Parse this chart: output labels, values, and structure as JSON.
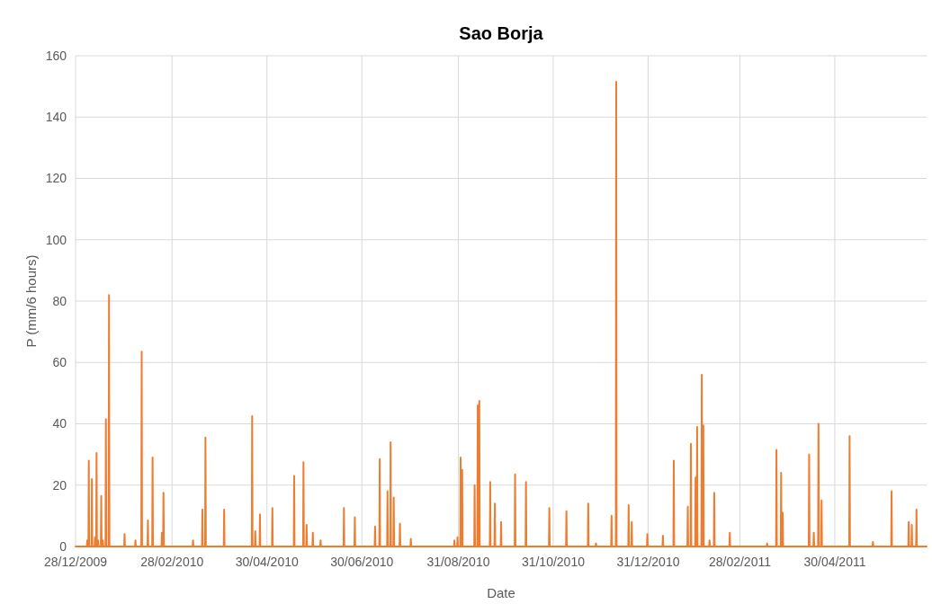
{
  "chart_data": {
    "type": "line",
    "title": "Sao Borja",
    "xlabel": "Date",
    "ylabel": "P (mm/6 hours)",
    "xlim": [
      "2009-12-28",
      "2011-06-28"
    ],
    "xticks": [
      {
        "value": "2009-12-28",
        "label": "28/12/2009"
      },
      {
        "value": "2010-02-28",
        "label": "28/02/2010"
      },
      {
        "value": "2010-04-30",
        "label": "30/04/2010"
      },
      {
        "value": "2010-06-30",
        "label": "30/06/2010"
      },
      {
        "value": "2010-08-31",
        "label": "31/08/2010"
      },
      {
        "value": "2010-10-31",
        "label": "31/10/2010"
      },
      {
        "value": "2010-12-31",
        "label": "31/12/2010"
      },
      {
        "value": "2011-02-28",
        "label": "28/02/2011"
      },
      {
        "value": "2011-04-30",
        "label": "30/04/2011"
      }
    ],
    "ylim": [
      0,
      160
    ],
    "yticks": [
      0,
      20,
      40,
      60,
      80,
      100,
      120,
      140,
      160
    ],
    "grid": true,
    "marker": "none",
    "line_style": "solid",
    "series": [
      {
        "color": "#ed7d31",
        "x": [
          "2009-12-28",
          "2010-01-04T06:00",
          "2010-01-04T12:00",
          "2010-01-04T18:00",
          "2010-01-05T06:00",
          "2010-01-05T12:00",
          "2010-01-05T18:00",
          "2010-01-07T06:00",
          "2010-01-07T12:00",
          "2010-01-07T18:00",
          "2010-01-09T06:00",
          "2010-01-09T12:00",
          "2010-01-09T18:00",
          "2010-01-10T06:00",
          "2010-01-10T12:00",
          "2010-01-10T18:00",
          "2010-01-11T06:00",
          "2010-01-11T12:00",
          "2010-01-11T18:00",
          "2010-01-13T06:00",
          "2010-01-13T12:00",
          "2010-01-13T18:00",
          "2010-01-14T06:00",
          "2010-01-14T12:00",
          "2010-01-14T18:00",
          "2010-01-16T06:00",
          "2010-01-16T12:00",
          "2010-01-16T18:00",
          "2010-01-18T06:00",
          "2010-01-18T12:00",
          "2010-01-18T18:00",
          "2010-01-28T06:00",
          "2010-01-28T12:00",
          "2010-01-28T18:00",
          "2010-02-04T06:00",
          "2010-02-04T12:00",
          "2010-02-04T18:00",
          "2010-02-08T06:00",
          "2010-02-08T12:00",
          "2010-02-08T18:00",
          "2010-02-12T06:00",
          "2010-02-12T12:00",
          "2010-02-12T18:00",
          "2010-02-15T06:00",
          "2010-02-15T12:00",
          "2010-02-15T18:00",
          "2010-02-21T06:00",
          "2010-02-21T12:00",
          "2010-02-21T18:00",
          "2010-02-22T06:00",
          "2010-02-22T12:00",
          "2010-02-22T18:00",
          "2010-03-13T06:00",
          "2010-03-13T12:00",
          "2010-03-13T18:00",
          "2010-03-19T06:00",
          "2010-03-19T12:00",
          "2010-03-19T18:00",
          "2010-03-21T06:00",
          "2010-03-21T12:00",
          "2010-03-21T18:00",
          "2010-04-02T06:00",
          "2010-04-02T12:00",
          "2010-04-02T18:00",
          "2010-04-20T06:00",
          "2010-04-20T12:00",
          "2010-04-20T18:00",
          "2010-04-22T06:00",
          "2010-04-22T12:00",
          "2010-04-22T18:00",
          "2010-04-25T06:00",
          "2010-04-25T12:00",
          "2010-04-25T18:00",
          "2010-05-03T06:00",
          "2010-05-03T12:00",
          "2010-05-03T18:00",
          "2010-05-17T06:00",
          "2010-05-17T12:00",
          "2010-05-17T18:00",
          "2010-05-23T06:00",
          "2010-05-23T12:00",
          "2010-05-23T18:00",
          "2010-05-25T06:00",
          "2010-05-25T12:00",
          "2010-05-25T18:00",
          "2010-05-29T06:00",
          "2010-05-29T12:00",
          "2010-05-29T18:00",
          "2010-06-03T06:00",
          "2010-06-03T12:00",
          "2010-06-03T18:00",
          "2010-06-18T06:00",
          "2010-06-18T12:00",
          "2010-06-18T18:00",
          "2010-06-25T06:00",
          "2010-06-25T12:00",
          "2010-06-25T18:00",
          "2010-07-08T06:00",
          "2010-07-08T12:00",
          "2010-07-08T18:00",
          "2010-07-11T06:00",
          "2010-07-11T12:00",
          "2010-07-11T18:00",
          "2010-07-16T06:00",
          "2010-07-16T12:00",
          "2010-07-16T18:00",
          "2010-07-18T06:00",
          "2010-07-18T12:00",
          "2010-07-18T18:00",
          "2010-07-20T06:00",
          "2010-07-20T12:00",
          "2010-07-20T18:00",
          "2010-07-24T06:00",
          "2010-07-24T12:00",
          "2010-07-24T18:00",
          "2010-07-31T06:00",
          "2010-07-31T12:00",
          "2010-07-31T18:00",
          "2010-08-28T06:00",
          "2010-08-28T12:00",
          "2010-08-28T18:00",
          "2010-08-30T06:00",
          "2010-08-30T12:00",
          "2010-08-30T18:00",
          "2010-09-01T06:00",
          "2010-09-01T12:00",
          "2010-09-01T18:00",
          "2010-09-02T06:00",
          "2010-09-02T12:00",
          "2010-09-02T18:00",
          "2010-09-10T06:00",
          "2010-09-10T12:00",
          "2010-09-10T18:00",
          "2010-09-12T06:00",
          "2010-09-12T12:00",
          "2010-09-12T18:00",
          "2010-09-13T06:00",
          "2010-09-13T12:00",
          "2010-09-13T18:00",
          "2010-09-20T06:00",
          "2010-09-20T12:00",
          "2010-09-20T18:00",
          "2010-09-23T06:00",
          "2010-09-23T12:00",
          "2010-09-23T18:00",
          "2010-09-27T06:00",
          "2010-09-27T12:00",
          "2010-09-27T18:00",
          "2010-10-06T06:00",
          "2010-10-06T12:00",
          "2010-10-06T18:00",
          "2010-10-13T06:00",
          "2010-10-13T12:00",
          "2010-10-13T18:00",
          "2010-10-28T06:00",
          "2010-10-28T12:00",
          "2010-10-28T18:00",
          "2010-11-08T06:00",
          "2010-11-08T12:00",
          "2010-11-08T18:00",
          "2010-11-22T06:00",
          "2010-11-22T12:00",
          "2010-11-22T18:00",
          "2010-11-27T06:00",
          "2010-11-27T12:00",
          "2010-11-27T18:00",
          "2010-12-07T06:00",
          "2010-12-07T12:00",
          "2010-12-07T18:00",
          "2010-12-10T06:00",
          "2010-12-10T12:00",
          "2010-12-10T18:00",
          "2010-12-18T06:00",
          "2010-12-18T12:00",
          "2010-12-18T18:00",
          "2010-12-20T06:00",
          "2010-12-20T12:00",
          "2010-12-20T18:00",
          "2010-12-30T06:00",
          "2010-12-30T12:00",
          "2010-12-30T18:00",
          "2011-01-09T06:00",
          "2011-01-09T12:00",
          "2011-01-09T18:00",
          "2011-01-16T06:00",
          "2011-01-16T12:00",
          "2011-01-16T18:00",
          "2011-01-25T06:00",
          "2011-01-25T12:00",
          "2011-01-25T18:00",
          "2011-01-27T06:00",
          "2011-01-27T12:00",
          "2011-01-27T18:00",
          "2011-01-30T06:00",
          "2011-01-30T12:00",
          "2011-01-30T18:00",
          "2011-01-31T06:00",
          "2011-01-31T12:00",
          "2011-01-31T18:00",
          "2011-02-03T06:00",
          "2011-02-03T12:00",
          "2011-02-03T18:00",
          "2011-02-04T06:00",
          "2011-02-04T12:00",
          "2011-02-04T18:00",
          "2011-02-08T06:00",
          "2011-02-08T12:00",
          "2011-02-08T18:00",
          "2011-02-11T06:00",
          "2011-02-11T12:00",
          "2011-02-11T18:00",
          "2011-02-21T06:00",
          "2011-02-21T12:00",
          "2011-02-21T18:00",
          "2011-03-17T06:00",
          "2011-03-17T12:00",
          "2011-03-17T18:00",
          "2011-03-23T06:00",
          "2011-03-23T12:00",
          "2011-03-23T18:00",
          "2011-03-26T06:00",
          "2011-03-26T12:00",
          "2011-03-26T18:00",
          "2011-03-27T06:00",
          "2011-03-27T12:00",
          "2011-03-27T18:00",
          "2011-04-13T06:00",
          "2011-04-13T12:00",
          "2011-04-13T18:00",
          "2011-04-16T06:00",
          "2011-04-16T12:00",
          "2011-04-16T18:00",
          "2011-04-19T06:00",
          "2011-04-19T12:00",
          "2011-04-19T18:00",
          "2011-04-21T06:00",
          "2011-04-21T12:00",
          "2011-04-21T18:00",
          "2011-05-09T06:00",
          "2011-05-09T12:00",
          "2011-05-09T18:00",
          "2011-05-24T06:00",
          "2011-05-24T12:00",
          "2011-05-24T18:00",
          "2011-06-05T06:00",
          "2011-06-05T12:00",
          "2011-06-05T18:00",
          "2011-06-16T06:00",
          "2011-06-16T12:00",
          "2011-06-16T18:00",
          "2011-06-18T06:00",
          "2011-06-18T12:00",
          "2011-06-18T18:00",
          "2011-06-21T06:00",
          "2011-06-21T12:00",
          "2011-06-21T18:00",
          "2011-06-28"
        ],
        "values": [
          0,
          0,
          2,
          0,
          0,
          28,
          0,
          0,
          22,
          0,
          0,
          3,
          0,
          0,
          30.5,
          0,
          0,
          2,
          0,
          0,
          16.5,
          0,
          0,
          2,
          0,
          0,
          41.5,
          0,
          0,
          82,
          0,
          0,
          4,
          0,
          0,
          2,
          0,
          0,
          63.5,
          0,
          0,
          8.5,
          0,
          0,
          29,
          0,
          0,
          4.5,
          0,
          0,
          17.5,
          0,
          0,
          2,
          0,
          0,
          12,
          0,
          0,
          35.5,
          0,
          0,
          12,
          0,
          0,
          42.5,
          0,
          0,
          5,
          0,
          0,
          10.5,
          0,
          0,
          12.5,
          0,
          0,
          23,
          0,
          0,
          27.5,
          0,
          0,
          7,
          0,
          0,
          4.5,
          0,
          0,
          2,
          0,
          0,
          12.5,
          0,
          0,
          9.5,
          0,
          0,
          6.5,
          0,
          0,
          28.5,
          0,
          0,
          18,
          0,
          0,
          34,
          0,
          0,
          16,
          0,
          0,
          7.5,
          0,
          0,
          2.5,
          0,
          0,
          2,
          0,
          0,
          3,
          0,
          0,
          29,
          0,
          0,
          25,
          0,
          0,
          20,
          0,
          0,
          46,
          0,
          0,
          47.5,
          0,
          0,
          21,
          0,
          0,
          14,
          0,
          0,
          8,
          0,
          0,
          23.5,
          0,
          0,
          21,
          0,
          0,
          12.5,
          0,
          0,
          11.5,
          0,
          0,
          14,
          0,
          0,
          1,
          0,
          0,
          10,
          0,
          0,
          151.5,
          0,
          0,
          13.5,
          0,
          0,
          8,
          0,
          0,
          4,
          0,
          0,
          3.5,
          0,
          0,
          28,
          0,
          0,
          13,
          0,
          0,
          33.5,
          0,
          0,
          22.5,
          0,
          0,
          39,
          0,
          0,
          56,
          0,
          0,
          39.5,
          0,
          0,
          2,
          0,
          0,
          17.5,
          0,
          0,
          4.5,
          0,
          0,
          1,
          0,
          0,
          31.5,
          0,
          0,
          24,
          0,
          0,
          11,
          0,
          0,
          30,
          0,
          0,
          4.5,
          0,
          0,
          40,
          0,
          0,
          15,
          0,
          0,
          36,
          0,
          0,
          1.5,
          0,
          0,
          18,
          0,
          0,
          8,
          0,
          0,
          7,
          0,
          0,
          12,
          0,
          0
        ]
      }
    ]
  }
}
